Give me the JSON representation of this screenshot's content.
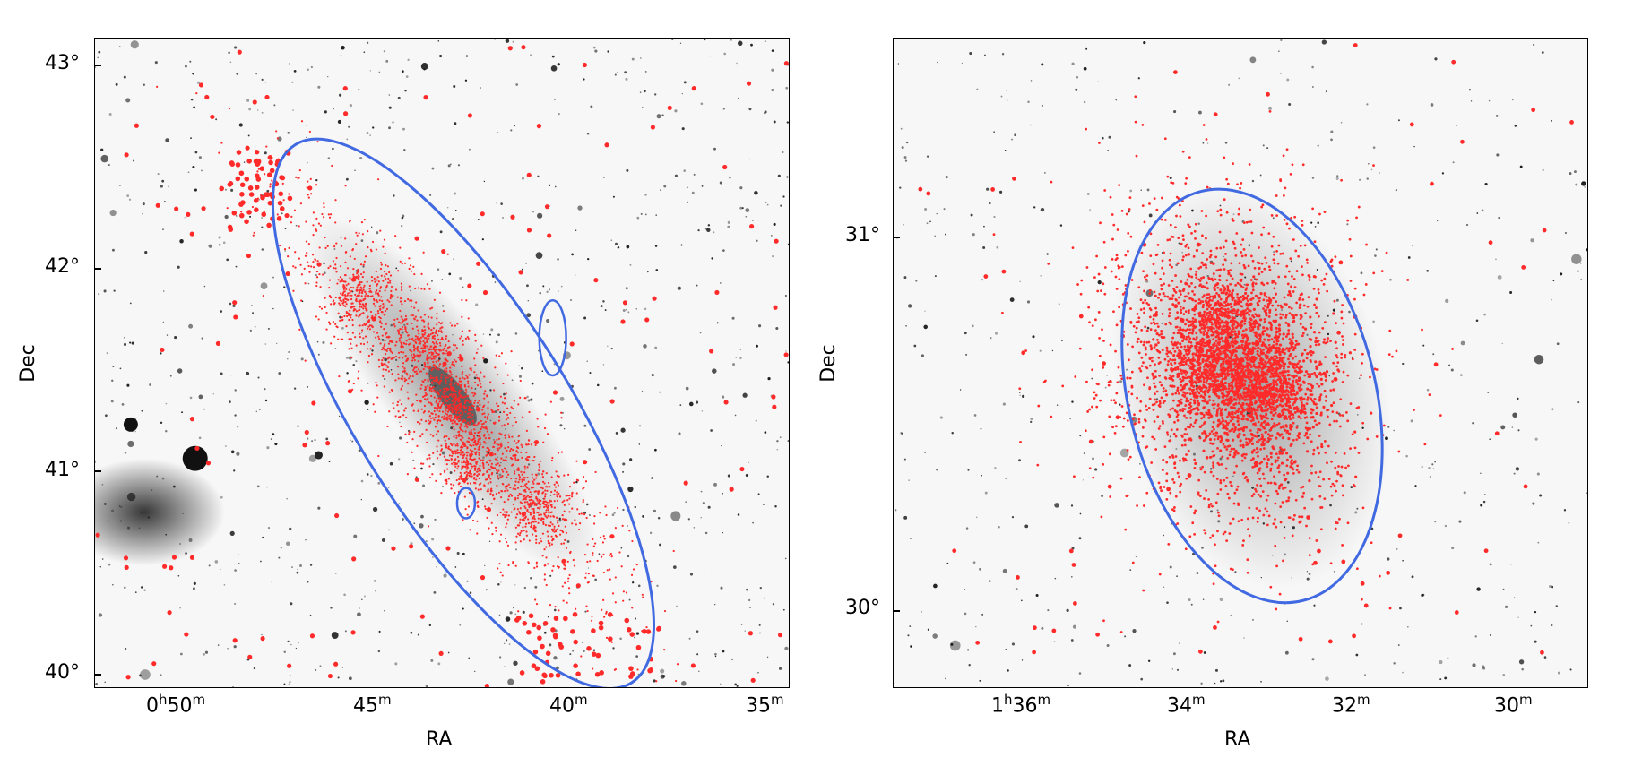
{
  "panels": [
    {
      "id": "left",
      "xlabel": "RA",
      "ylabel": "Dec",
      "xticks": [
        {
          "h": "0",
          "hs": "h",
          "m": "50",
          "ms": "m"
        },
        {
          "m": "45",
          "ms": "m"
        },
        {
          "m": "40",
          "ms": "m"
        },
        {
          "m": "35",
          "ms": "m"
        }
      ],
      "yticks": [
        "43°",
        "42°",
        "41°",
        "40°"
      ]
    },
    {
      "id": "right",
      "xlabel": "RA",
      "ylabel": "Dec",
      "xticks": [
        {
          "h": "1",
          "hs": "h",
          "m": "36",
          "ms": "m"
        },
        {
          "m": "34",
          "ms": "m"
        },
        {
          "m": "32",
          "ms": "m"
        },
        {
          "m": "30",
          "ms": "m"
        }
      ],
      "yticks": [
        "31°",
        "30°"
      ]
    }
  ],
  "colors": {
    "points": "#ff2a2a",
    "ellipse": "#4169e1",
    "stars": "#111111",
    "sky": "#f7f7f7"
  }
}
